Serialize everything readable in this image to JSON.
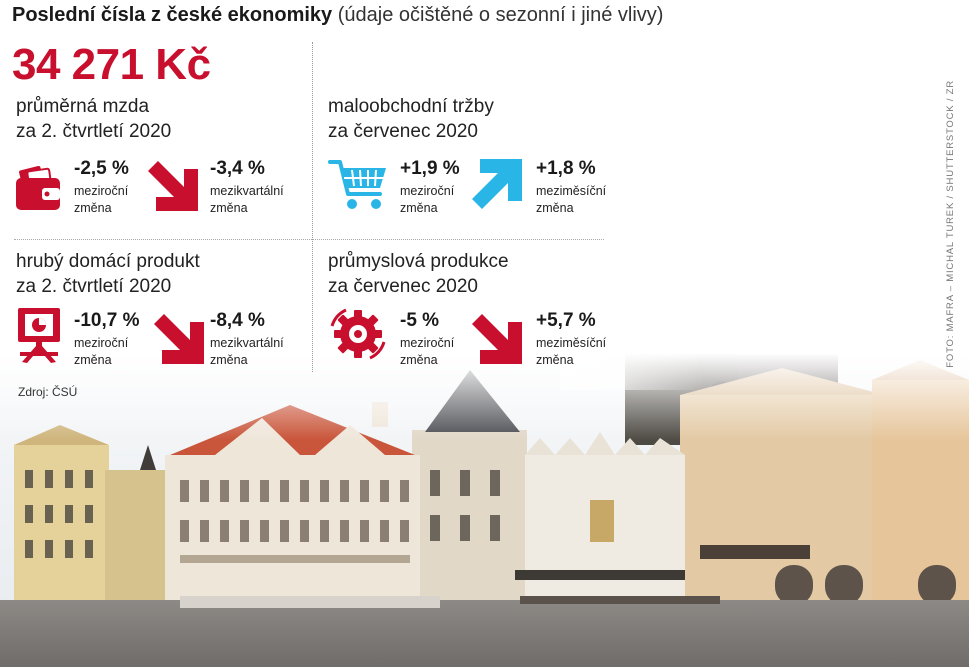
{
  "headline": {
    "bold": "Poslední čísla z české ekonomiky",
    "light": "(údaje očištěné o sezonní i jiné vlivy)"
  },
  "wage": {
    "amount": "34 271 Kč",
    "title_line1": "průměrná mzda",
    "title_line2": "za 2. čtvrtletí 2020",
    "stat1": {
      "value": "-2,5 %",
      "label_line1": "meziroční",
      "label_line2": "změna"
    },
    "stat2": {
      "value": "-3,4 %",
      "label_line1": "mezikvartální",
      "label_line2": "změna"
    },
    "icon": "wallet-icon",
    "arrow": "down"
  },
  "retail": {
    "title_line1": "maloobchodní tržby",
    "title_line2": "za červenec 2020",
    "stat1": {
      "value": "+1,9 %",
      "label_line1": "meziroční",
      "label_line2": "změna"
    },
    "stat2": {
      "value": "+1,8 %",
      "label_line1": "meziměsíční",
      "label_line2": "změna"
    },
    "icon": "shopping-cart-icon",
    "arrow": "up"
  },
  "gdp": {
    "title_line1": "hrubý domácí produkt",
    "title_line2": "za 2. čtvrtletí 2020",
    "stat1": {
      "value": "-10,7 %",
      "label_line1": "meziroční",
      "label_line2": "změna"
    },
    "stat2": {
      "value": "-8,4 %",
      "label_line1": "mezikvartální",
      "label_line2": "změna"
    },
    "icon": "easel-chart-icon",
    "arrow": "down"
  },
  "industry": {
    "title_line1": "průmyslová produkce",
    "title_line2": "za červenec 2020",
    "stat1": {
      "value": "-5 %",
      "label_line1": "meziroční",
      "label_line2": "změna"
    },
    "stat2": {
      "value": "+5,7 %",
      "label_line1": "meziměsíční",
      "label_line2": "změna"
    },
    "icon": "gears-icon",
    "arrow": "down"
  },
  "source": "Zdroj: ČSÚ",
  "credit": "FOTO: MAFRA – MICHAL TUREK / SHUTTERSTOCK / ZR",
  "colors": {
    "accent_red": "#c8102e",
    "accent_cyan": "#29b6e6",
    "text": "#1a1a1a"
  }
}
